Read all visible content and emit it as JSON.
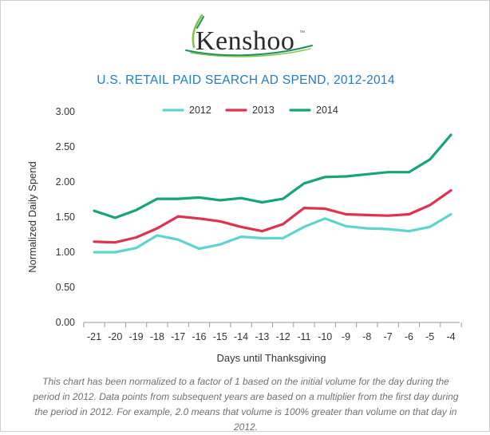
{
  "logo": {
    "text": "Kenshoo",
    "trademark": "™"
  },
  "colors": {
    "title": "#1b7fc0",
    "series_2012": "#5fd3d0",
    "series_2013": "#e0314f",
    "series_2014": "#14a57a",
    "logo_leaf": "#84c443",
    "logo_swoosh": "#18915e"
  },
  "chart_data": {
    "type": "line",
    "title": "U.S. RETAIL PAID SEARCH AD SPEND, 2012-2014",
    "xlabel": "Days until Thanksgiving",
    "ylabel": "Normalized Daily Spend",
    "ylim": [
      0,
      3.0
    ],
    "yticks": [
      "0.00",
      "0.50",
      "1.00",
      "1.50",
      "2.00",
      "2.50",
      "3.00"
    ],
    "categories": [
      "-21",
      "-20",
      "-19",
      "-18",
      "-17",
      "-16",
      "-15",
      "-14",
      "-13",
      "-12",
      "-11",
      "-10",
      "-9",
      "-8",
      "-7",
      "-6",
      "-5",
      "-4"
    ],
    "grid": false,
    "legend_position": "top",
    "series": [
      {
        "name": "2012",
        "color": "#5fd3d0",
        "values": [
          1.0,
          1.0,
          1.06,
          1.24,
          1.18,
          1.05,
          1.11,
          1.22,
          1.2,
          1.2,
          1.36,
          1.48,
          1.37,
          1.34,
          1.33,
          1.3,
          1.36,
          1.54
        ]
      },
      {
        "name": "2013",
        "color": "#e0314f",
        "values": [
          1.15,
          1.14,
          1.21,
          1.34,
          1.51,
          1.48,
          1.44,
          1.36,
          1.3,
          1.4,
          1.63,
          1.62,
          1.54,
          1.53,
          1.52,
          1.54,
          1.67,
          1.88
        ]
      },
      {
        "name": "2014",
        "color": "#14a57a",
        "values": [
          1.59,
          1.49,
          1.6,
          1.76,
          1.76,
          1.78,
          1.74,
          1.77,
          1.71,
          1.76,
          1.98,
          2.07,
          2.08,
          2.11,
          2.14,
          2.14,
          2.32,
          2.67
        ]
      }
    ]
  },
  "caption": "This chart has been normalized to a factor of 1 based on the initial volume for the day during the period in 2012. Data points from subsequent years are based on a multiplier from the first day during the period in 2012. For example, 2.0 means that volume is 100% greater than volume on that day in 2012."
}
